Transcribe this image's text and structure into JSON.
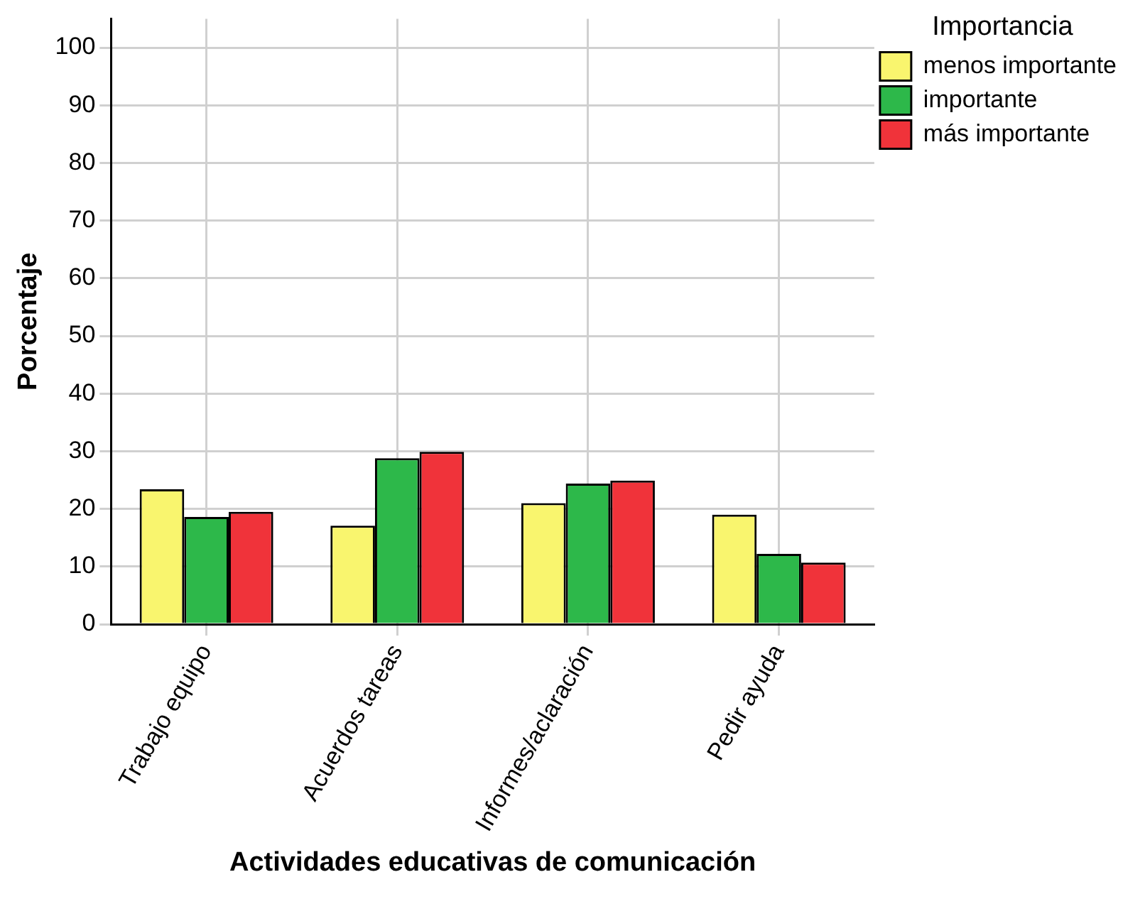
{
  "chart_data": {
    "type": "bar",
    "xlabel": "Actividades educativas de comunicación",
    "ylabel": "Porcentaje",
    "legend_title": "Importancia",
    "categories": [
      "Trabajo equipo",
      "Acuerdos tareas",
      "Informes/aclaración",
      "Pedir ayuda"
    ],
    "series": [
      {
        "name": "menos importante",
        "color": "#f9f56e",
        "values": [
          23.4,
          17.1,
          21.0,
          19.0
        ]
      },
      {
        "name": "importante",
        "color": "#2db84a",
        "values": [
          18.6,
          28.8,
          24.4,
          12.2
        ]
      },
      {
        "name": "más importante",
        "color": "#f0333a",
        "values": [
          19.5,
          29.9,
          24.9,
          10.7
        ]
      }
    ],
    "ylim": [
      0,
      105
    ],
    "yticks": [
      0,
      10,
      20,
      30,
      40,
      50,
      60,
      70,
      80,
      90,
      100
    ],
    "grid": true,
    "legend": "top right"
  }
}
